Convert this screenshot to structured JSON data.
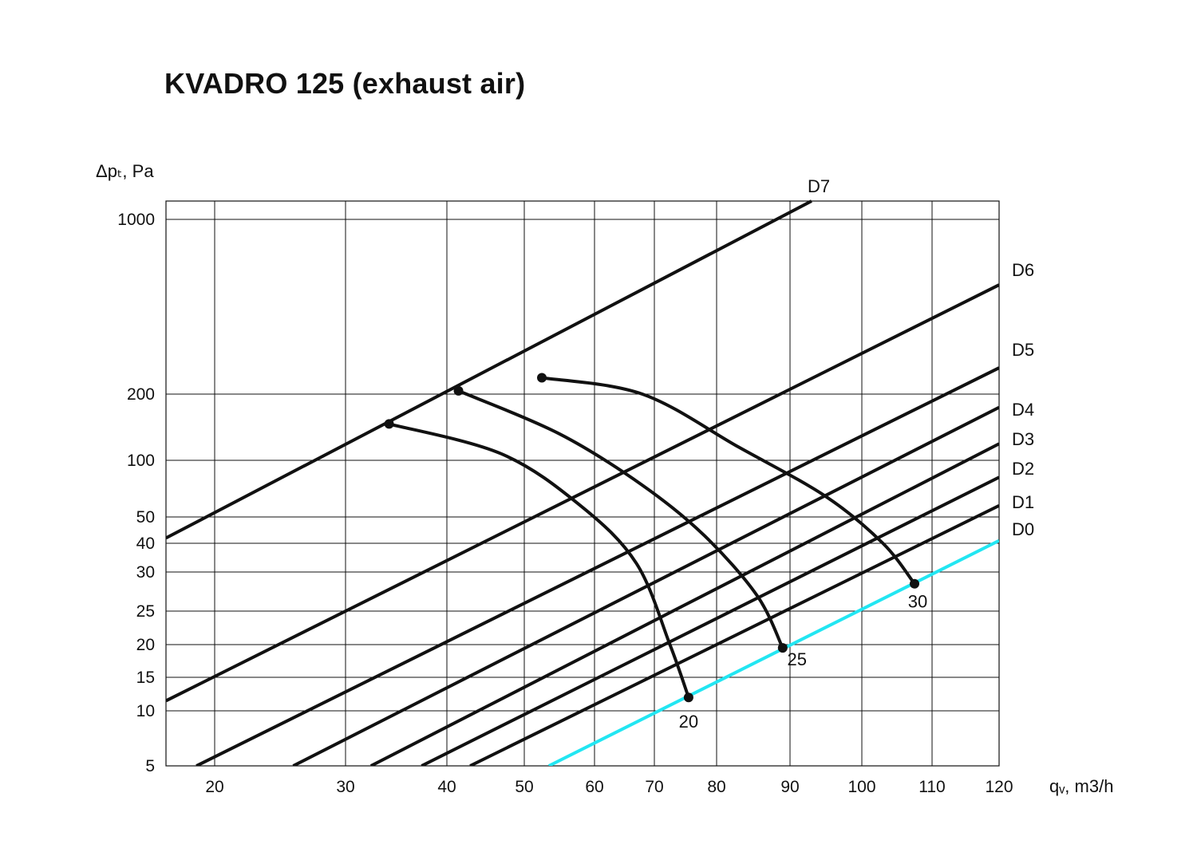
{
  "chart_data": {
    "type": "line",
    "title": "KVADRO 125 (exhaust air)",
    "xlabel": "qᵥ, m3/h",
    "ylabel": "Δpₜ, Pa",
    "x_ticks": [
      20,
      30,
      40,
      50,
      60,
      70,
      80,
      90,
      100,
      110,
      120
    ],
    "y_ticks": [
      5,
      10,
      15,
      20,
      25,
      30,
      40,
      50,
      100,
      200,
      1000
    ],
    "xlim": [
      16,
      120
    ],
    "ylim": [
      5,
      1200
    ],
    "grid": true,
    "series": [
      {
        "name": "D7",
        "color": "#111111",
        "points": [
          [
            16,
            42
          ],
          [
            93,
            1200
          ]
        ]
      },
      {
        "name": "D6",
        "color": "#111111",
        "points": [
          [
            16,
            11.5
          ],
          [
            120,
            700
          ]
        ]
      },
      {
        "name": "D5",
        "color": "#111111",
        "points": [
          [
            18.5,
            5
          ],
          [
            120,
            320
          ]
        ]
      },
      {
        "name": "D4",
        "color": "#111111",
        "points": [
          [
            26,
            5
          ],
          [
            120,
            180
          ]
        ]
      },
      {
        "name": "D3",
        "color": "#111111",
        "points": [
          [
            32.5,
            5
          ],
          [
            120,
            125
          ]
        ]
      },
      {
        "name": "D2",
        "color": "#111111",
        "points": [
          [
            37.5,
            5
          ],
          [
            120,
            85
          ]
        ]
      },
      {
        "name": "D1",
        "color": "#111111",
        "points": [
          [
            43,
            5
          ],
          [
            120,
            60
          ]
        ]
      },
      {
        "name": "D0",
        "color": "#22E6F2",
        "points": [
          [
            53.5,
            5
          ],
          [
            120,
            41
          ]
        ]
      }
    ],
    "fan_curves": [
      {
        "label": "20",
        "points": [
          [
            34.3,
            155
          ],
          [
            47,
            110
          ],
          [
            58,
            60
          ],
          [
            67,
            33
          ],
          [
            72.5,
            20
          ],
          [
            75.5,
            12
          ]
        ]
      },
      {
        "label": "25",
        "points": [
          [
            41.5,
            215
          ],
          [
            55,
            140
          ],
          [
            68,
            78
          ],
          [
            78,
            43
          ],
          [
            85.5,
            27
          ],
          [
            89,
            19.5
          ]
        ]
      },
      {
        "label": "30",
        "points": [
          [
            52.5,
            275
          ],
          [
            68,
            200
          ],
          [
            83,
            120
          ],
          [
            95,
            68
          ],
          [
            103,
            40
          ],
          [
            107.5,
            28.5
          ]
        ]
      }
    ]
  }
}
